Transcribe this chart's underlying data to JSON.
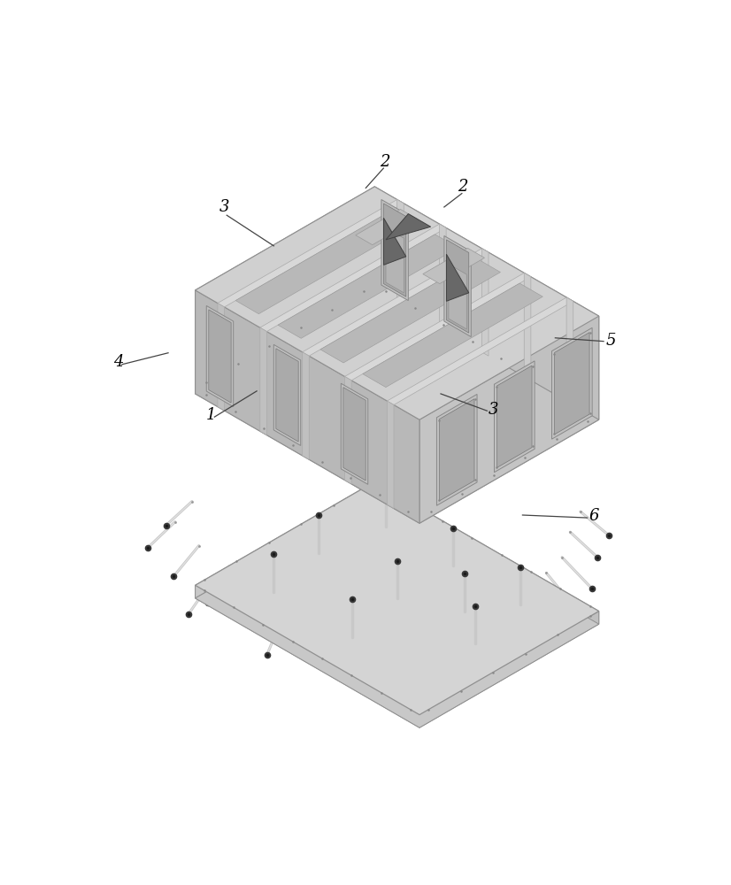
{
  "bg": "#ffffff",
  "c_plate_top": "#d4d4d4",
  "c_plate_side_l": "#c8c8c8",
  "c_plate_side_f": "#c0c0c0",
  "c_body_top": "#d0d0d0",
  "c_body_left": "#c8c8c8",
  "c_body_front": "#c4c4c4",
  "c_body_right": "#b8b8b8",
  "c_wall_top": "#d8d8d8",
  "c_wall_left": "#cccccc",
  "c_wall_front": "#c0c0c0",
  "c_channel_open": "#b4b4b4",
  "c_channel_inner": "#a0a0a0",
  "c_port_outer": "#c0c0c0",
  "c_port_inner": "#aaaaaa",
  "c_tri": "#686868",
  "c_tri_edge": "#404040",
  "c_screw_head": "#383838",
  "c_screw_shaft": "#c8c8c8",
  "c_hole": "#888888",
  "c_edge": "#909090",
  "c_label": "#000000",
  "c_leader": "#444444",
  "label_fs": 13
}
